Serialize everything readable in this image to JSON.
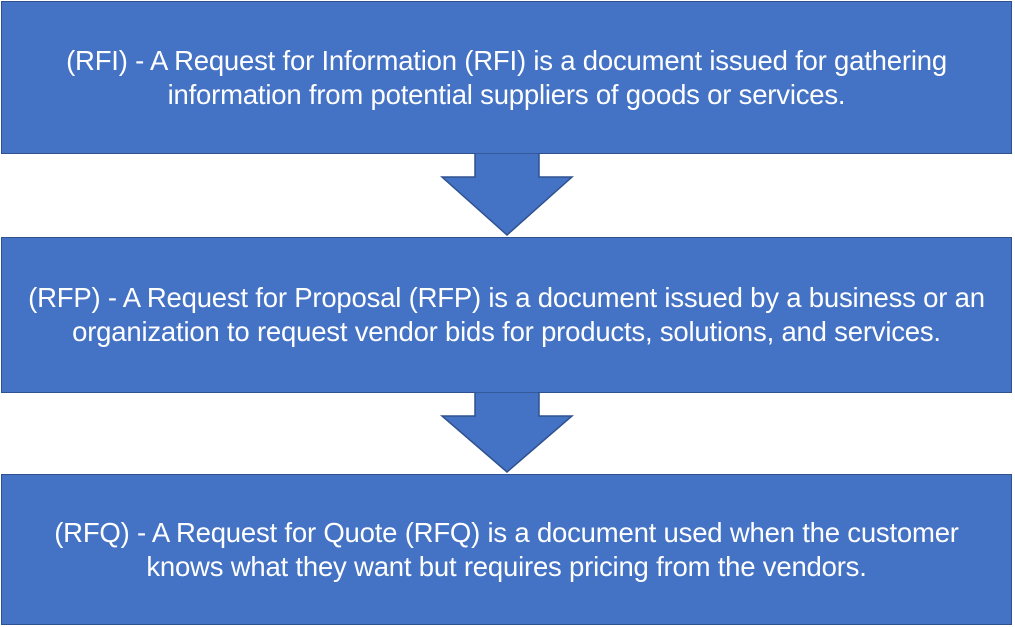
{
  "colors": {
    "box_fill": "#4472c4",
    "box_border": "#2f528f",
    "text": "#ffffff"
  },
  "steps": [
    {
      "text": "(RFI) - A Request for Information (RFI) is a document issued for gathering information from potential suppliers of goods or services."
    },
    {
      "text": "(RFP) - A Request for Proposal (RFP) is a document issued by a business or an organization to request vendor bids for products, solutions, and services."
    },
    {
      "text": "(RFQ) - A Request for Quote (RFQ) is a document used when the customer knows what they want but requires pricing from the vendors."
    }
  ]
}
